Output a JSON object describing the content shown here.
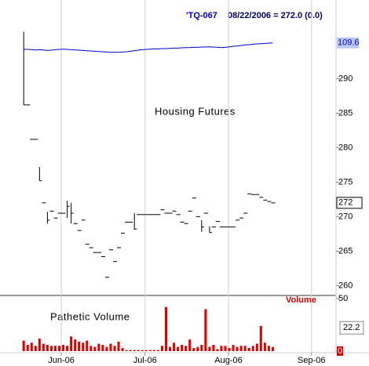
{
  "chart_data": [
    {
      "type": "ohlc",
      "symbol": "'TQ-067",
      "quote": "08/22/2006 = 272.0 (0.0)",
      "annotation": "Housing Futures",
      "bar_color": "#000000",
      "x": [
        0,
        1,
        2,
        3,
        4,
        5,
        6,
        7,
        8,
        9,
        10,
        11,
        12,
        13,
        14,
        15,
        16,
        17,
        18,
        19,
        20,
        21,
        22,
        23,
        24,
        25,
        26,
        27,
        28,
        29,
        30,
        31,
        32,
        33,
        34,
        35,
        36,
        37,
        38,
        39,
        40,
        41,
        42,
        43,
        44,
        45,
        46,
        47,
        48,
        49,
        50,
        51,
        52,
        53,
        54,
        55,
        56,
        57,
        58,
        59,
        60,
        61,
        62,
        63
      ],
      "xlim": [
        -6,
        79
      ],
      "ylim": [
        258.8,
        300.5
      ],
      "yticks": [
        260,
        265,
        270,
        275,
        280,
        285,
        290
      ],
      "close": [
        286.2,
        286.2,
        281.2,
        281.2,
        275.2,
        272.0,
        269.5,
        270.8,
        269.8,
        270.5,
        270.5,
        271.5,
        270.5,
        269.0,
        268.0,
        269.5,
        266.0,
        265.5,
        264.8,
        264.8,
        264.2,
        261.2,
        265.2,
        263.5,
        265.5,
        267.6,
        269.2,
        269.2,
        268.2,
        270.3,
        270.3,
        270.3,
        270.3,
        270.3,
        270.3,
        271.0,
        270.5,
        270.5,
        270.8,
        270.3,
        269.2,
        269.0,
        270.8,
        272.7,
        270.0,
        268.5,
        270.5,
        267.7,
        268.5,
        269.3,
        268.5,
        268.5,
        268.5,
        268.5,
        269.5,
        269.8,
        270.5,
        273.3,
        273.2,
        273.2,
        272.8,
        272.4,
        272.2,
        272.0
      ],
      "high": [
        296.8,
        null,
        null,
        null,
        277.2,
        null,
        270.7,
        null,
        null,
        null,
        null,
        272.3,
        272.0,
        null,
        null,
        null,
        null,
        null,
        null,
        null,
        null,
        null,
        null,
        null,
        null,
        null,
        null,
        null,
        270.5,
        null,
        null,
        null,
        null,
        null,
        null,
        null,
        null,
        null,
        null,
        null,
        null,
        null,
        null,
        null,
        null,
        269.5,
        null,
        268.6,
        null,
        null,
        null,
        null,
        null,
        null,
        null,
        null,
        null,
        null,
        null,
        null,
        null,
        null,
        null,
        null
      ],
      "low": [
        286.2,
        null,
        null,
        null,
        275.2,
        null,
        269.0,
        null,
        null,
        null,
        null,
        269.8,
        269.0,
        null,
        null,
        null,
        null,
        null,
        null,
        null,
        null,
        null,
        null,
        null,
        null,
        null,
        null,
        null,
        268.1,
        null,
        null,
        null,
        null,
        null,
        null,
        null,
        null,
        null,
        null,
        null,
        null,
        null,
        null,
        null,
        null,
        267.8,
        null,
        267.7,
        null,
        null,
        null,
        null,
        null,
        null,
        null,
        null,
        null,
        null,
        null,
        null,
        null,
        null,
        null,
        null
      ],
      "y2lim": [
        100,
        111
      ],
      "series": [
        {
          "axis": "y2",
          "color": "#0000cc",
          "values": [
            109.35,
            109.35,
            109.34,
            109.33,
            109.34,
            109.33,
            109.31,
            109.32,
            109.34,
            109.35,
            109.36,
            109.35,
            109.34,
            109.33,
            109.32,
            109.31,
            109.3,
            109.29,
            109.28,
            109.27,
            109.26,
            109.25,
            109.24,
            109.24,
            109.24,
            109.25,
            109.26,
            109.28,
            109.3,
            109.32,
            109.34,
            109.35,
            109.36,
            109.37,
            109.37,
            109.38,
            109.38,
            109.39,
            109.4,
            109.4,
            109.41,
            109.42,
            109.42,
            109.43,
            109.43,
            109.44,
            109.44,
            109.45,
            109.44,
            109.43,
            109.42,
            109.43,
            109.45,
            109.47,
            109.48,
            109.5,
            109.52,
            109.53,
            109.55,
            109.56,
            109.57,
            109.58,
            109.59,
            109.6
          ]
        }
      ]
    },
    {
      "type": "bar",
      "annotation": "Pathetic Volume",
      "y_label": "Volume",
      "color": "#e00000",
      "x": [
        0,
        1,
        2,
        3,
        4,
        5,
        6,
        7,
        8,
        9,
        10,
        11,
        12,
        13,
        14,
        15,
        16,
        17,
        18,
        19,
        20,
        21,
        22,
        23,
        24,
        25,
        26,
        27,
        28,
        29,
        30,
        31,
        32,
        33,
        34,
        35,
        36,
        37,
        38,
        39,
        40,
        41,
        42,
        43,
        44,
        45,
        46,
        47,
        48,
        49,
        50,
        51,
        52,
        53,
        54,
        55,
        56,
        57,
        58,
        59,
        60,
        61,
        62,
        63
      ],
      "xlim": [
        -6,
        79
      ],
      "xticks": [
        {
          "value": 9.5,
          "label": "Jun-06"
        },
        {
          "value": 30.7,
          "label": "Jul-06"
        },
        {
          "value": 51.8,
          "label": "Aug-06"
        },
        {
          "value": 72.8,
          "label": "Sep-06"
        }
      ],
      "grid": true,
      "ylim": [
        0,
        50
      ],
      "yticks": [
        0,
        50
      ],
      "reference_value": 22.2,
      "values": [
        10,
        6,
        8,
        5,
        12,
        7,
        6,
        5,
        5,
        5,
        6,
        5,
        14,
        11,
        9,
        8,
        10,
        5,
        4,
        7,
        6,
        4,
        7,
        5,
        9,
        3,
        1,
        1,
        1,
        1,
        1,
        1,
        1,
        1,
        1,
        5,
        42,
        4,
        8,
        4,
        6,
        5,
        11,
        3,
        4,
        6,
        40,
        4,
        6,
        2,
        5,
        5,
        3,
        6,
        4,
        5,
        5,
        3,
        5,
        7,
        24,
        8,
        5,
        4
      ]
    }
  ]
}
